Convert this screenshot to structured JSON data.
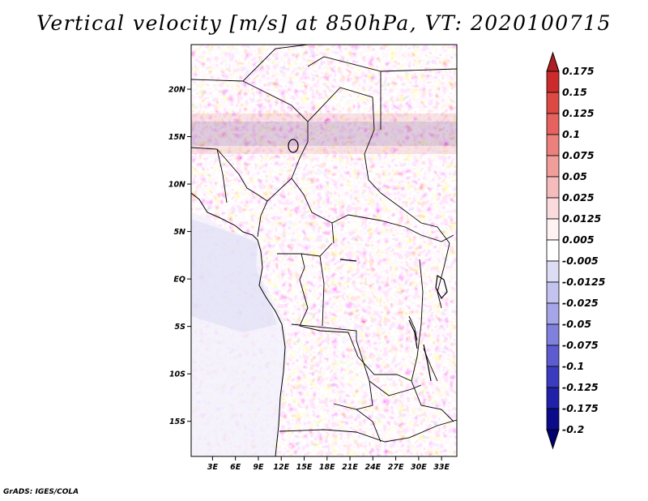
{
  "chart_data": {
    "type": "heatmap",
    "title": "Vertical velocity [m/s] at 850hPa, VT: 2020100715",
    "variable": "Vertical velocity",
    "units": "m/s",
    "level": "850hPa",
    "valid_time": "2020100715",
    "x_ticks": [
      {
        "value": 3,
        "label": "3E"
      },
      {
        "value": 6,
        "label": "6E"
      },
      {
        "value": 9,
        "label": "9E"
      },
      {
        "value": 12,
        "label": "12E"
      },
      {
        "value": 15,
        "label": "15E"
      },
      {
        "value": 18,
        "label": "18E"
      },
      {
        "value": 21,
        "label": "21E"
      },
      {
        "value": 24,
        "label": "24E"
      },
      {
        "value": 27,
        "label": "27E"
      },
      {
        "value": 30,
        "label": "30E"
      },
      {
        "value": 33,
        "label": "33E"
      }
    ],
    "y_ticks": [
      {
        "value": 20,
        "label": "20N"
      },
      {
        "value": 15,
        "label": "15N"
      },
      {
        "value": 10,
        "label": "10N"
      },
      {
        "value": 5,
        "label": "5N"
      },
      {
        "value": 0,
        "label": "EQ"
      },
      {
        "value": -5,
        "label": "5S"
      },
      {
        "value": -10,
        "label": "10S"
      },
      {
        "value": -15,
        "label": "15S"
      }
    ],
    "xlim": [
      0.2,
      35.0
    ],
    "ylim": [
      -18.7,
      24.7
    ],
    "colorbar": {
      "levels": [
        "0.175",
        "0.15",
        "0.125",
        "0.1",
        "0.075",
        "0.05",
        "0.025",
        "0.0125",
        "0.005",
        "-0.005",
        "-0.0125",
        "-0.025",
        "-0.05",
        "-0.075",
        "-0.1",
        "-0.125",
        "-0.175",
        "-0.2"
      ],
      "colors": [
        "#b01d22",
        "#cc2b2b",
        "#dd4a44",
        "#e6625e",
        "#ec807c",
        "#f19e9b",
        "#f6bcbb",
        "#fadadb",
        "#fff2f2",
        "#ffffff",
        "#dcdcf4",
        "#c3c3ef",
        "#a5a5e8",
        "#8080dd",
        "#5c5cd0",
        "#3b3bc0",
        "#2020a8",
        "#0a0a8a",
        "#000070"
      ]
    }
  },
  "footer": "GrADS: IGES/COLA"
}
